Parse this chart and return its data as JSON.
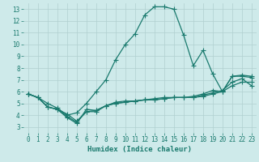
{
  "xlabel": "Humidex (Indice chaleur)",
  "xlim": [
    -0.5,
    23.5
  ],
  "ylim": [
    2.5,
    13.5
  ],
  "xticks": [
    0,
    1,
    2,
    3,
    4,
    5,
    6,
    7,
    8,
    9,
    10,
    11,
    12,
    13,
    14,
    15,
    16,
    17,
    18,
    19,
    20,
    21,
    22,
    23
  ],
  "yticks": [
    3,
    4,
    5,
    6,
    7,
    8,
    9,
    10,
    11,
    12,
    13
  ],
  "background_color": "#ceeaea",
  "grid_color": "#b0d0d0",
  "line_color": "#1a7a6e",
  "lines": [
    {
      "x": [
        0,
        1,
        2,
        3,
        4,
        5,
        6,
        7,
        8,
        9,
        10,
        11,
        12,
        13,
        14,
        15,
        16,
        17,
        18,
        19,
        20,
        21,
        22,
        23
      ],
      "y": [
        5.8,
        5.5,
        5.0,
        4.6,
        4.0,
        4.2,
        5.0,
        6.0,
        7.0,
        8.7,
        10.0,
        10.9,
        12.5,
        13.2,
        13.2,
        13.0,
        10.8,
        8.2,
        9.5,
        7.5,
        6.0,
        7.3,
        7.3,
        7.2
      ]
    },
    {
      "x": [
        0,
        1,
        2,
        3,
        4,
        5,
        6,
        7,
        8,
        9,
        10,
        11,
        12,
        13,
        14,
        15,
        16,
        17,
        18,
        19,
        20,
        21,
        22,
        23
      ],
      "y": [
        5.8,
        5.5,
        4.7,
        4.5,
        3.8,
        3.3,
        4.5,
        4.4,
        4.8,
        5.0,
        5.1,
        5.2,
        5.3,
        5.3,
        5.4,
        5.5,
        5.5,
        5.5,
        5.6,
        5.8,
        6.0,
        6.5,
        6.8,
        6.8
      ]
    },
    {
      "x": [
        0,
        1,
        2,
        3,
        4,
        5,
        6,
        7,
        8,
        9,
        10,
        11,
        12,
        13,
        14,
        15,
        16,
        17,
        18,
        19,
        20,
        21,
        22,
        23
      ],
      "y": [
        5.8,
        5.5,
        4.7,
        4.5,
        4.1,
        3.5,
        4.3,
        4.3,
        4.8,
        5.0,
        5.1,
        5.2,
        5.3,
        5.3,
        5.4,
        5.5,
        5.5,
        5.5,
        5.7,
        5.9,
        6.1,
        6.8,
        7.1,
        6.5
      ]
    },
    {
      "x": [
        0,
        1,
        2,
        3,
        4,
        5,
        6,
        7,
        8,
        9,
        10,
        11,
        12,
        13,
        14,
        15,
        16,
        17,
        18,
        19,
        20,
        21,
        22,
        23
      ],
      "y": [
        5.8,
        5.5,
        4.7,
        4.5,
        3.9,
        3.4,
        4.3,
        4.4,
        4.8,
        5.1,
        5.2,
        5.2,
        5.3,
        5.4,
        5.5,
        5.5,
        5.5,
        5.6,
        5.8,
        6.1,
        6.0,
        7.3,
        7.4,
        7.3
      ]
    }
  ],
  "marker": "+",
  "markersize": 4,
  "linewidth": 0.9,
  "tick_fontsize": 5.5,
  "xlabel_fontsize": 6.5
}
